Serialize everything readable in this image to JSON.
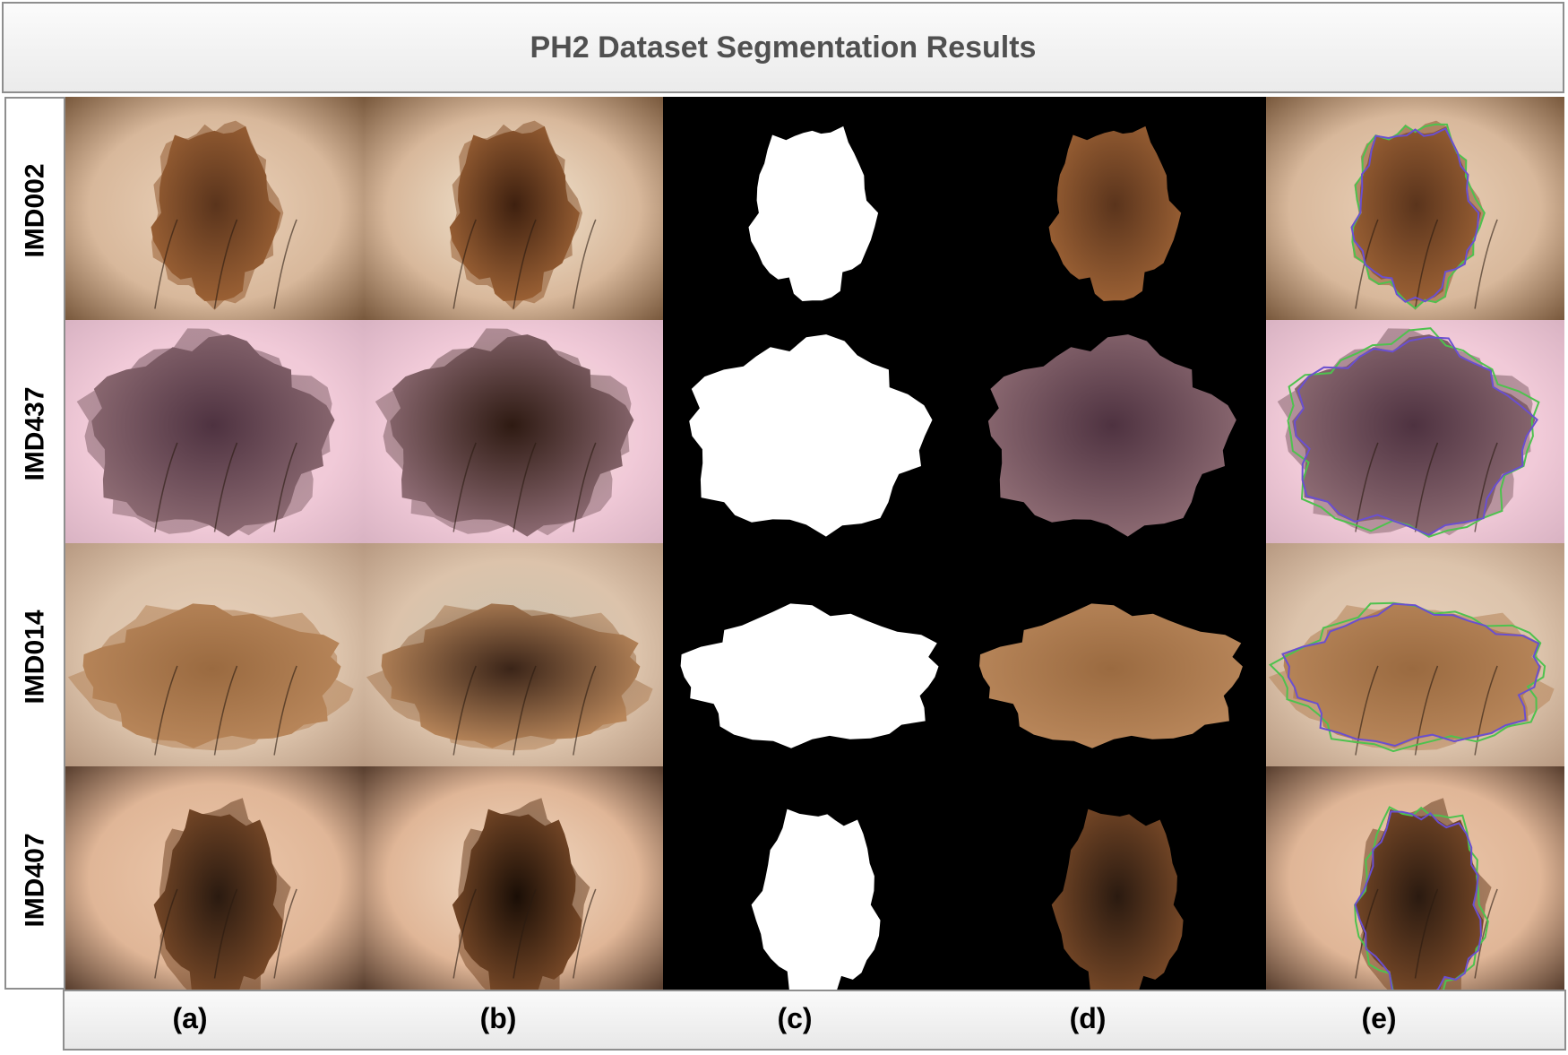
{
  "title": "PH2 Dataset Segmentation Results",
  "rows": [
    "IMD002",
    "IMD437",
    "IMD014",
    "IMD407"
  ],
  "columns": [
    "(a)",
    "(b)",
    "(c)",
    "(d)",
    "(e)"
  ],
  "colors": {
    "outline_green": "#4ec24e",
    "outline_purple": "#6a4fd0",
    "mask_background": "#000000",
    "mask_foreground": "#ffffff"
  },
  "row_styles": [
    {
      "bg_outer": "#7a5a3e",
      "bg_mid": "#d8b89b",
      "bg_center": "#ecd3bb",
      "lesion_outer": "#9a6034",
      "lesion_core": "#5a341c",
      "lesion_core_b": "#3e200f",
      "bg_center_b": "#f4e8d4"
    },
    {
      "bg_outer": "#d9b3c3",
      "bg_mid": "#f1cad8",
      "bg_center": "#f5d6e0",
      "lesion_outer": "#8c6a72",
      "lesion_core": "#4e3240",
      "lesion_core_b": "#2e1a12",
      "bg_center_b": "#f4ecd8"
    },
    {
      "bg_outer": "#b89a82",
      "bg_mid": "#dcc3ab",
      "bg_center": "#e8d2bd",
      "lesion_outer": "#b8865a",
      "lesion_core": "#9a6a40",
      "lesion_core_b": "#3a2418",
      "bg_center_b": "#c9c2b0"
    },
    {
      "bg_outer": "#5a4030",
      "bg_mid": "#e0b697",
      "bg_center": "#ecc8ac",
      "lesion_outer": "#7a4a28",
      "lesion_core": "#2a1a10",
      "lesion_core_b": "#1a0e06",
      "bg_center_b": "#f2dcc6"
    }
  ]
}
